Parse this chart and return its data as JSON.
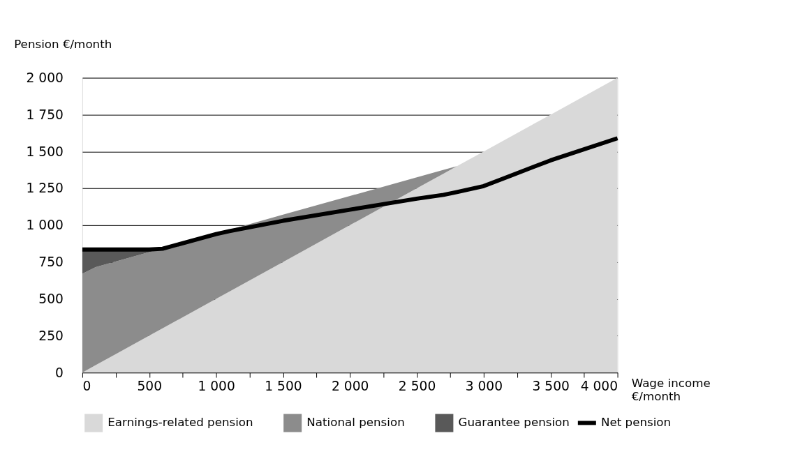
{
  "chart_data": {
    "type": "area",
    "ylabel": "Pension €/month",
    "xlabel": "Wage income €/month",
    "stacked": true,
    "grid": "y",
    "legend": "bottom",
    "x": [
      0,
      100,
      500,
      600,
      1000,
      1100,
      1500,
      2000,
      2500,
      2700,
      2800,
      3000,
      3500,
      4000
    ],
    "series": [
      {
        "name": "Earnings-related pension",
        "color": "#d9d9d9",
        "values": [
          0,
          50,
          250,
          300,
          500,
          550,
          750,
          1000,
          1250,
          1350,
          1400,
          1500,
          1750,
          2000
        ]
      },
      {
        "name": "National pension",
        "color": "#8c8c8c",
        "values": [
          670,
          665,
          567,
          542,
          444,
          419,
          321,
          198,
          75,
          26,
          0,
          null,
          null,
          null
        ]
      },
      {
        "name": "Guarantee pension",
        "color": "#595959",
        "values": [
          165,
          120,
          18,
          0,
          null,
          null,
          null,
          null,
          null,
          null,
          null,
          null,
          null,
          null
        ]
      },
      {
        "name": "Net pension",
        "type": "line",
        "color": "#000000",
        "values": [
          835,
          835,
          835,
          840,
          940,
          960,
          1030,
          1105,
          1180,
          1206,
          1225,
          1265,
          1440,
          1590
        ]
      }
    ],
    "xlim": [
      0,
      4000
    ],
    "ylim": [
      0,
      2000
    ],
    "xticks": [
      0,
      {
        "value": 250,
        "label": null
      },
      500,
      {
        "value": 750,
        "label": null
      },
      {
        "value": 1000,
        "label": "1 000"
      },
      {
        "value": 1250,
        "label": null
      },
      {
        "value": 1500,
        "label": "1 500"
      },
      {
        "value": 1750,
        "label": null
      },
      {
        "value": 2000,
        "label": "2 000"
      },
      {
        "value": 2250,
        "label": null
      },
      {
        "value": 2500,
        "label": "2 500"
      },
      {
        "value": 2750,
        "label": null
      },
      {
        "value": 3000,
        "label": "3 000"
      },
      {
        "value": 3250,
        "label": null
      },
      {
        "value": 3500,
        "label": "3 500"
      },
      {
        "value": 3750,
        "label": null
      },
      {
        "value": 4000,
        "label": "4 000"
      }
    ],
    "yticks": [
      0,
      250,
      500,
      750,
      {
        "value": 1000,
        "label": "1 000"
      },
      {
        "value": 1250,
        "label": "1 250"
      },
      {
        "value": 1500,
        "label": "1 500"
      },
      {
        "value": 1750,
        "label": "1 750"
      },
      {
        "value": 2000,
        "label": "2 000"
      }
    ]
  }
}
